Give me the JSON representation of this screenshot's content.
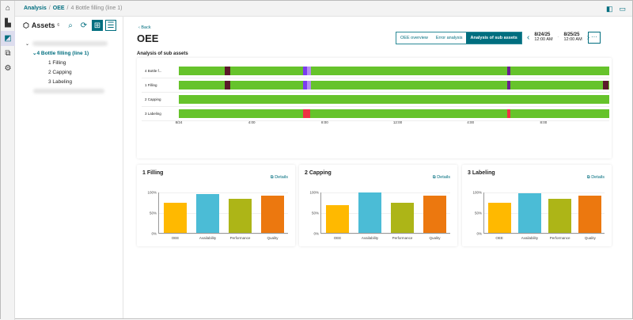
{
  "nav": [
    "home-icon",
    "chart-icon",
    "analysis-icon",
    "maintenance-icon",
    "settings-icon"
  ],
  "breadcrumb": {
    "items": [
      "Analysis",
      "OEE"
    ],
    "current": "4 Bottle filling (line 1)"
  },
  "assets": {
    "title": "Assets",
    "count": "6",
    "tree": [
      "4 Bottle filling (line 1)",
      "1 Filling",
      "2 Capping",
      "3 Labeling"
    ]
  },
  "main": {
    "back": "Back",
    "title": "OEE",
    "tabs": [
      "OEE overview",
      "Error analysis",
      "Analysis of sub assets"
    ],
    "active_tab": 2,
    "date_from": {
      "date": "8/24/25",
      "time": "12:00 AM"
    },
    "date_to": {
      "date": "8/25/25",
      "time": "12:00 AM"
    },
    "more": "···",
    "section": "Analysis of sub assets"
  },
  "timeline": {
    "span_hours": 24,
    "colors": {
      "running": "#66c32b",
      "stop": "#5a1a2a",
      "purple": "#6a1f8f",
      "violet": "#7b3cf0",
      "lilac": "#b48cf0",
      "error": "#ee3344"
    },
    "lanes": [
      {
        "label": "4 Bottle f...",
        "events": [
          [
            2.5,
            0.3,
            "stop"
          ],
          [
            6.8,
            0.25,
            "violet"
          ],
          [
            7.05,
            0.2,
            "lilac"
          ],
          [
            18.0,
            0.2,
            "purple"
          ]
        ]
      },
      {
        "label": "1 Filling",
        "events": [
          [
            2.5,
            0.3,
            "stop"
          ],
          [
            6.8,
            0.25,
            "violet"
          ],
          [
            7.05,
            0.2,
            "lilac"
          ],
          [
            18.0,
            0.2,
            "purple"
          ],
          [
            23.25,
            0.3,
            "stop"
          ]
        ]
      },
      {
        "label": "2 Capping",
        "events": []
      },
      {
        "label": "3 Labeling",
        "events": [
          [
            6.8,
            0.4,
            "error"
          ],
          [
            18.0,
            0.2,
            "error"
          ]
        ]
      }
    ],
    "ticks": [
      [
        "8/24",
        0
      ],
      [
        "4:00",
        4
      ],
      [
        "8:00",
        8
      ],
      [
        "12:00",
        12
      ],
      [
        "4:00",
        16
      ],
      [
        "8:00",
        20
      ]
    ]
  },
  "chart_data": [
    {
      "type": "bar",
      "title": "1 Filling",
      "categories": [
        "OEE",
        "Availability",
        "Performance",
        "Quality"
      ],
      "values": [
        73,
        94,
        83,
        90
      ],
      "ylim": [
        0,
        100
      ],
      "yticks": [
        "0%",
        "50%",
        "100%"
      ]
    },
    {
      "type": "bar",
      "title": "2 Capping",
      "categories": [
        "OEE",
        "Availability",
        "Performance",
        "Quality"
      ],
      "values": [
        67,
        98,
        73,
        90
      ],
      "ylim": [
        0,
        100
      ],
      "yticks": [
        "0%",
        "50%",
        "100%"
      ]
    },
    {
      "type": "bar",
      "title": "3 Labeling",
      "categories": [
        "OEE",
        "Availability",
        "Performance",
        "Quality"
      ],
      "values": [
        73,
        96,
        83,
        90
      ],
      "ylim": [
        0,
        100
      ],
      "yticks": [
        "0%",
        "50%",
        "100%"
      ]
    }
  ],
  "bar_colors": [
    "#ffb900",
    "#4bbcd6",
    "#adb517",
    "#ec780f"
  ],
  "details_label": "Details"
}
